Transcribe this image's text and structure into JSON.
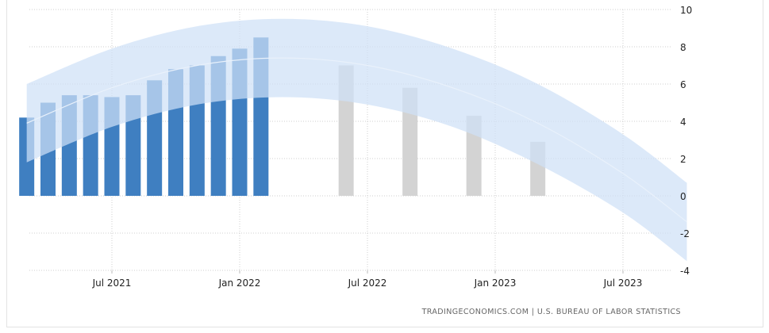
{
  "source_text": "TRADINGECONOMICS.COM | U.S. BUREAU OF LABOR STATISTICS",
  "chart_data": {
    "type": "bar",
    "title": "",
    "xlabel": "",
    "ylabel": "",
    "ylim": [
      -4,
      10
    ],
    "yticks": [
      "10",
      "8",
      "6",
      "4",
      "2",
      "0",
      "-2",
      "-4"
    ],
    "xticks": [
      {
        "label": "Jul 2021",
        "date": "2021-07"
      },
      {
        "label": "Jan 2022",
        "date": "2022-01"
      },
      {
        "label": "Jul 2022",
        "date": "2022-07"
      },
      {
        "label": "Jan 2023",
        "date": "2023-01"
      },
      {
        "label": "Jul 2023",
        "date": "2023-07"
      }
    ],
    "grid": true,
    "series": [
      {
        "kind": "actual",
        "color": "#3f7fc1",
        "points": [
          {
            "date": "2021-03",
            "value": 4.2
          },
          {
            "date": "2021-04",
            "value": 5.0
          },
          {
            "date": "2021-05",
            "value": 5.4
          },
          {
            "date": "2021-06",
            "value": 5.4
          },
          {
            "date": "2021-07",
            "value": 5.3
          },
          {
            "date": "2021-08",
            "value": 5.4
          },
          {
            "date": "2021-09",
            "value": 6.2
          },
          {
            "date": "2021-10",
            "value": 6.8
          },
          {
            "date": "2021-11",
            "value": 7.0
          },
          {
            "date": "2021-12",
            "value": 7.5
          },
          {
            "date": "2022-01",
            "value": 7.9
          },
          {
            "date": "2022-02",
            "value": 8.5
          }
        ]
      },
      {
        "kind": "forecast",
        "color": "#d3d3d3",
        "points": [
          {
            "date": "2022-06",
            "value": 7.0
          },
          {
            "date": "2022-09",
            "value": 5.8
          },
          {
            "date": "2022-12",
            "value": 4.3
          },
          {
            "date": "2023-03",
            "value": 2.9
          }
        ]
      }
    ],
    "trend": {
      "color": "#cfe0f7",
      "points": [
        {
          "date": "2021-03",
          "center": 3.9,
          "upper": 6.0,
          "lower": 1.8
        },
        {
          "date": "2021-07",
          "center": 5.8,
          "upper": 7.9,
          "lower": 3.7
        },
        {
          "date": "2021-11",
          "center": 7.0,
          "upper": 9.1,
          "lower": 4.9
        },
        {
          "date": "2022-03",
          "center": 7.4,
          "upper": 9.5,
          "lower": 5.3
        },
        {
          "date": "2022-07",
          "center": 7.0,
          "upper": 9.1,
          "lower": 4.9
        },
        {
          "date": "2022-11",
          "center": 5.8,
          "upper": 7.9,
          "lower": 3.7
        },
        {
          "date": "2023-03",
          "center": 3.9,
          "upper": 6.0,
          "lower": 1.7
        },
        {
          "date": "2023-07",
          "center": 1.2,
          "upper": 3.3,
          "lower": -0.9
        },
        {
          "date": "2023-10",
          "center": -1.4,
          "upper": 0.7,
          "lower": -3.5
        }
      ]
    }
  }
}
